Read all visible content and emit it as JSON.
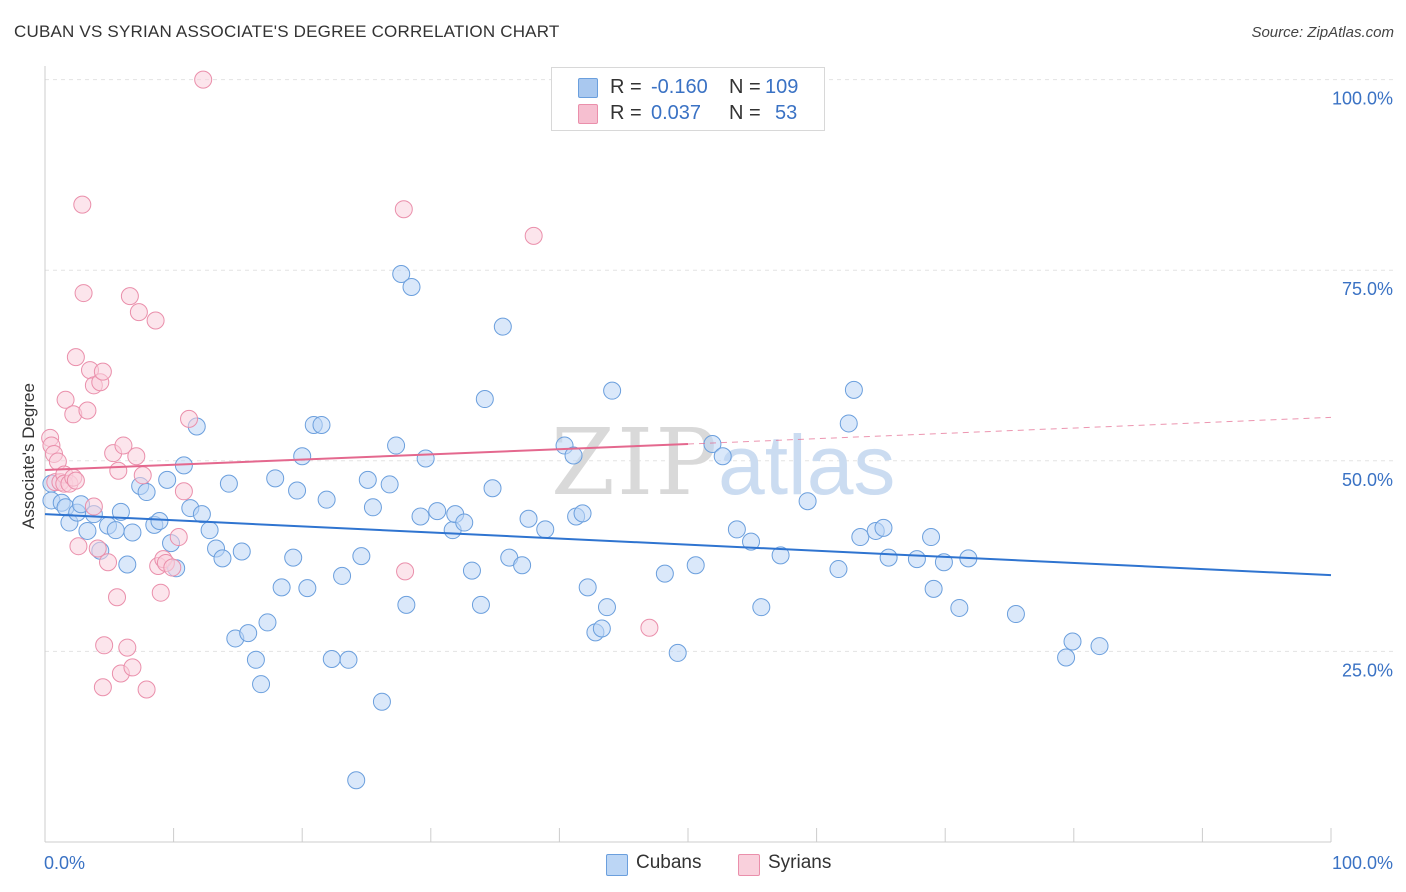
{
  "title": "CUBAN VS SYRIAN ASSOCIATE'S DEGREE CORRELATION CHART",
  "source": "Source: ZipAtlas.com",
  "legend": {
    "rows": [
      {
        "r_label": "R =",
        "r_value": "-0.160",
        "n_label": "N =",
        "n_value": "109",
        "color": "#a9c8ef",
        "border": "#6b9fdd"
      },
      {
        "r_label": "R =",
        "r_value": "0.037",
        "n_label": "N =",
        "n_value": "53",
        "color": "#f6bfd0",
        "border": "#ea8fab"
      }
    ]
  },
  "bottom_legend": [
    {
      "label": "Cubans",
      "color": "#bcd6f5",
      "border": "#6b9fdd"
    },
    {
      "label": "Syrians",
      "color": "#f9d0dc",
      "border": "#ea8fab"
    }
  ],
  "watermark": {
    "zip": "ZIP",
    "atlas": "atlas"
  },
  "chart_data": {
    "type": "scatter",
    "title": "CUBAN VS SYRIAN ASSOCIATE'S DEGREE CORRELATION CHART",
    "xlabel": "",
    "ylabel": "Associate's Degree",
    "xlim": [
      0,
      100
    ],
    "ylim": [
      0,
      102
    ],
    "x_tick_labels": [
      "0.0%",
      "100.0%"
    ],
    "y_tick_labels": [
      "25.0%",
      "50.0%",
      "75.0%",
      "100.0%"
    ],
    "y_ticks": [
      25,
      50,
      75,
      100
    ],
    "grid": true,
    "legend_position": "top-center",
    "series": [
      {
        "name": "Cubans",
        "color": "#6b9fdd",
        "fill": "#bcd6f5",
        "trend": {
          "x": [
            0,
            100
          ],
          "y": [
            43.0,
            35.0
          ],
          "color": "#2f74d0"
        },
        "points": [
          [
            0.5,
            47.0
          ],
          [
            0.5,
            44.8
          ],
          [
            1.3,
            44.5
          ],
          [
            1.6,
            43.9
          ],
          [
            1.9,
            41.9
          ],
          [
            2.5,
            43.2
          ],
          [
            2.8,
            44.3
          ],
          [
            3.3,
            40.8
          ],
          [
            3.8,
            43.0
          ],
          [
            4.3,
            38.2
          ],
          [
            4.9,
            41.5
          ],
          [
            5.5,
            40.9
          ],
          [
            5.9,
            43.3
          ],
          [
            6.4,
            36.4
          ],
          [
            6.8,
            40.6
          ],
          [
            7.4,
            46.7
          ],
          [
            7.9,
            45.9
          ],
          [
            8.5,
            41.6
          ],
          [
            8.9,
            42.1
          ],
          [
            9.5,
            47.5
          ],
          [
            9.8,
            39.2
          ],
          [
            10.2,
            35.9
          ],
          [
            10.8,
            49.4
          ],
          [
            11.3,
            43.8
          ],
          [
            11.8,
            54.5
          ],
          [
            12.2,
            43.0
          ],
          [
            12.8,
            40.9
          ],
          [
            13.3,
            38.5
          ],
          [
            13.8,
            37.2
          ],
          [
            14.3,
            47.0
          ],
          [
            14.8,
            26.7
          ],
          [
            15.3,
            38.1
          ],
          [
            15.8,
            27.4
          ],
          [
            16.4,
            23.9
          ],
          [
            16.8,
            20.7
          ],
          [
            17.3,
            28.8
          ],
          [
            17.9,
            47.7
          ],
          [
            18.4,
            33.4
          ],
          [
            19.3,
            37.3
          ],
          [
            19.6,
            46.1
          ],
          [
            20.0,
            50.6
          ],
          [
            20.4,
            33.3
          ],
          [
            20.9,
            54.7
          ],
          [
            21.5,
            54.7
          ],
          [
            21.9,
            44.9
          ],
          [
            22.3,
            24.0
          ],
          [
            23.1,
            34.9
          ],
          [
            23.6,
            23.9
          ],
          [
            24.2,
            8.1
          ],
          [
            24.6,
            37.5
          ],
          [
            25.1,
            47.5
          ],
          [
            25.5,
            43.9
          ],
          [
            26.2,
            18.4
          ],
          [
            26.8,
            46.9
          ],
          [
            27.3,
            52.0
          ],
          [
            27.7,
            74.5
          ],
          [
            28.1,
            31.1
          ],
          [
            28.5,
            72.8
          ],
          [
            29.2,
            42.7
          ],
          [
            29.6,
            50.3
          ],
          [
            30.5,
            43.4
          ],
          [
            31.7,
            40.9
          ],
          [
            31.9,
            43.0
          ],
          [
            32.6,
            41.9
          ],
          [
            33.2,
            35.6
          ],
          [
            33.9,
            31.1
          ],
          [
            34.2,
            58.1
          ],
          [
            34.8,
            46.4
          ],
          [
            35.6,
            67.6
          ],
          [
            36.1,
            37.3
          ],
          [
            37.1,
            36.3
          ],
          [
            37.6,
            42.4
          ],
          [
            38.9,
            41.0
          ],
          [
            40.4,
            52.0
          ],
          [
            41.1,
            50.7
          ],
          [
            41.3,
            42.7
          ],
          [
            41.8,
            43.1
          ],
          [
            42.2,
            33.4
          ],
          [
            42.8,
            27.5
          ],
          [
            43.3,
            28.0
          ],
          [
            43.7,
            30.8
          ],
          [
            44.1,
            59.2
          ],
          [
            48.2,
            35.2
          ],
          [
            49.2,
            24.8
          ],
          [
            50.6,
            36.3
          ],
          [
            51.9,
            52.2
          ],
          [
            52.7,
            50.6
          ],
          [
            53.8,
            41.0
          ],
          [
            54.9,
            39.4
          ],
          [
            55.7,
            30.8
          ],
          [
            57.2,
            37.6
          ],
          [
            59.3,
            44.7
          ],
          [
            61.7,
            35.8
          ],
          [
            62.5,
            54.9
          ],
          [
            62.9,
            59.3
          ],
          [
            63.4,
            40.0
          ],
          [
            64.6,
            40.8
          ],
          [
            65.2,
            41.2
          ],
          [
            65.6,
            37.3
          ],
          [
            67.8,
            37.1
          ],
          [
            68.9,
            40.0
          ],
          [
            69.1,
            33.2
          ],
          [
            69.9,
            36.7
          ],
          [
            71.1,
            30.7
          ],
          [
            71.8,
            37.2
          ],
          [
            75.5,
            29.9
          ],
          [
            79.4,
            24.2
          ],
          [
            79.9,
            26.3
          ],
          [
            82.0,
            25.7
          ]
        ]
      },
      {
        "name": "Syrians",
        "color": "#ea8fab",
        "fill": "#f9d0dc",
        "trend": {
          "x": [
            0,
            50
          ],
          "y": [
            48.8,
            52.2
          ],
          "color": "#e4688e",
          "dashed_to": [
            100,
            55.7
          ]
        },
        "points": [
          [
            0.4,
            53.0
          ],
          [
            0.5,
            52.0
          ],
          [
            0.7,
            50.9
          ],
          [
            0.8,
            47.2
          ],
          [
            1.0,
            49.9
          ],
          [
            1.2,
            47.2
          ],
          [
            1.5,
            48.2
          ],
          [
            1.5,
            47.0
          ],
          [
            1.6,
            58.0
          ],
          [
            1.9,
            47.0
          ],
          [
            2.2,
            47.8
          ],
          [
            2.4,
            47.4
          ],
          [
            2.2,
            56.1
          ],
          [
            2.4,
            63.6
          ],
          [
            2.6,
            38.8
          ],
          [
            2.9,
            83.6
          ],
          [
            3.0,
            72.0
          ],
          [
            3.3,
            56.6
          ],
          [
            3.5,
            61.9
          ],
          [
            3.8,
            59.9
          ],
          [
            3.8,
            44.0
          ],
          [
            4.1,
            38.5
          ],
          [
            4.3,
            60.3
          ],
          [
            4.5,
            20.3
          ],
          [
            4.5,
            61.7
          ],
          [
            4.6,
            25.8
          ],
          [
            4.9,
            36.7
          ],
          [
            5.3,
            51.0
          ],
          [
            5.6,
            32.1
          ],
          [
            5.7,
            48.7
          ],
          [
            5.9,
            22.1
          ],
          [
            6.1,
            52.0
          ],
          [
            6.4,
            25.5
          ],
          [
            6.6,
            71.6
          ],
          [
            6.8,
            22.9
          ],
          [
            7.1,
            50.6
          ],
          [
            7.3,
            69.5
          ],
          [
            7.6,
            48.1
          ],
          [
            7.9,
            20.0
          ],
          [
            8.6,
            68.4
          ],
          [
            8.8,
            36.2
          ],
          [
            9.0,
            32.7
          ],
          [
            9.2,
            37.1
          ],
          [
            9.4,
            36.6
          ],
          [
            9.9,
            36.0
          ],
          [
            10.4,
            40.0
          ],
          [
            10.8,
            46.0
          ],
          [
            11.2,
            55.5
          ],
          [
            12.3,
            100.0
          ],
          [
            27.9,
            83.0
          ],
          [
            28.0,
            35.5
          ],
          [
            38.0,
            79.5
          ],
          [
            47.0,
            28.1
          ]
        ]
      }
    ]
  }
}
